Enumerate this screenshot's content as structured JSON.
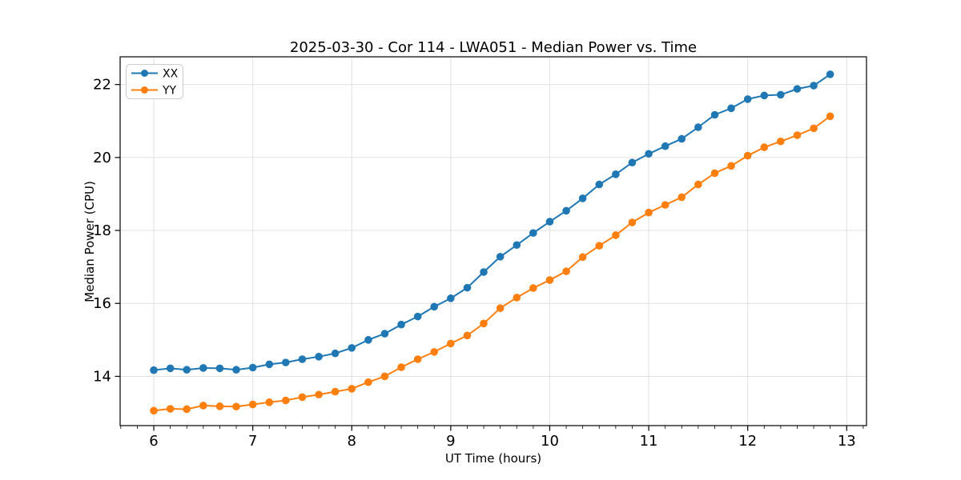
{
  "figure": {
    "background": "#ffffff",
    "text_color": "#000000",
    "spine_color": "#000000"
  },
  "chart_data": {
    "type": "line",
    "title": "2025-03-30 - Cor 114 - LWA051 - Median Power vs. Time",
    "xlabel": "UT Time (hours)",
    "ylabel": "Median Power (CPU)",
    "xlim": [
      5.66,
      13.2
    ],
    "ylim": [
      12.65,
      22.76
    ],
    "xticks": [
      6,
      7,
      8,
      9,
      10,
      11,
      12,
      13
    ],
    "yticks": [
      14,
      16,
      18,
      20,
      22
    ],
    "x_minor_tick_step_hours": 0.1667,
    "grid": "major-both",
    "grid_color": "#e0e0e0",
    "legend": {
      "position": "upper-left",
      "entries": [
        "XX",
        "YY"
      ]
    },
    "x_hours": [
      6.0,
      6.167,
      6.333,
      6.5,
      6.667,
      6.833,
      7.0,
      7.167,
      7.333,
      7.5,
      7.667,
      7.833,
      8.0,
      8.167,
      8.333,
      8.5,
      8.667,
      8.833,
      9.0,
      9.167,
      9.333,
      9.5,
      9.667,
      9.833,
      10.0,
      10.167,
      10.333,
      10.5,
      10.667,
      10.833,
      11.0,
      11.167,
      11.333,
      11.5,
      11.667,
      11.833,
      12.0,
      12.167,
      12.333,
      12.5,
      12.667,
      12.833
    ],
    "series": [
      {
        "name": "XX",
        "color": "#1f77b4",
        "values": [
          14.17,
          14.22,
          14.18,
          14.23,
          14.22,
          14.18,
          14.24,
          14.33,
          14.38,
          14.47,
          14.54,
          14.63,
          14.78,
          15.0,
          15.17,
          15.42,
          15.64,
          15.91,
          16.14,
          16.43,
          16.86,
          17.28,
          17.6,
          17.93,
          18.24,
          18.54,
          18.88,
          19.26,
          19.54,
          19.86,
          20.1,
          20.31,
          20.51,
          20.83,
          21.17,
          21.35,
          21.6,
          21.7,
          21.72,
          21.88,
          21.97,
          22.28
        ]
      },
      {
        "name": "YY",
        "color": "#ff7f0e",
        "values": [
          13.06,
          13.11,
          13.1,
          13.2,
          13.18,
          13.17,
          13.23,
          13.29,
          13.34,
          13.43,
          13.5,
          13.58,
          13.66,
          13.84,
          14.0,
          14.25,
          14.47,
          14.67,
          14.9,
          15.12,
          15.45,
          15.87,
          16.16,
          16.42,
          16.64,
          16.88,
          17.27,
          17.58,
          17.87,
          18.22,
          18.49,
          18.7,
          18.91,
          19.26,
          19.57,
          19.77,
          20.05,
          20.28,
          20.44,
          20.61,
          20.8,
          21.13
        ]
      }
    ]
  }
}
